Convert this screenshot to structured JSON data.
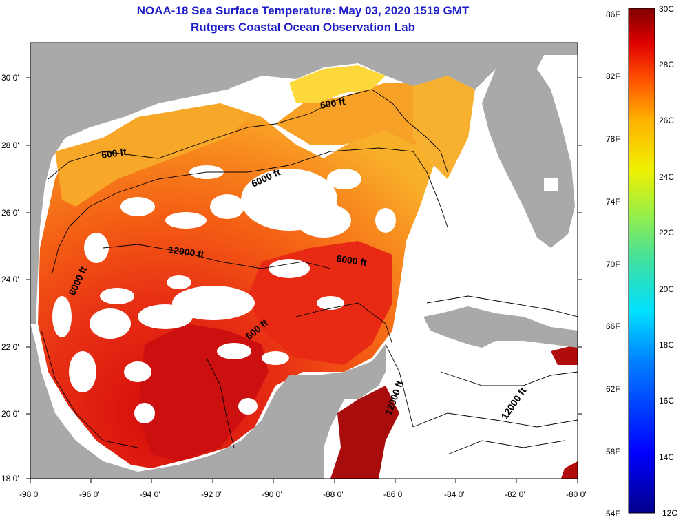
{
  "title": {
    "line1": "NOAA-18 Sea Surface Temperature:  May 03, 2020 1519 GMT",
    "line2": "Rutgers Coastal Ocean Observation Lab"
  },
  "axes": {
    "lon_labels": [
      "-98 0'",
      "-96 0'",
      "-94 0'",
      "-92 0'",
      "-90 0'",
      "-88 0'",
      "-86 0'",
      "-84 0'",
      "-82 0'",
      "-80 0'"
    ],
    "lat_labels": [
      "30 0'",
      "28 0'",
      "26 0'",
      "24 0'",
      "22 0'",
      "20 0'",
      "18 0'"
    ],
    "lon_range": [
      -98,
      -80
    ],
    "lat_range": [
      18,
      31
    ]
  },
  "contours": {
    "labels": [
      "600 ft",
      "600 ft",
      "6000 ft",
      "12000 ft",
      "6000 ft",
      "6000 ft",
      "600 ft",
      "12000 ft",
      "12000 ft"
    ]
  },
  "colorbar": {
    "fahrenheit": [
      "86F",
      "82F",
      "78F",
      "74F",
      "70F",
      "66F",
      "62F",
      "58F",
      "54F"
    ],
    "celsius": [
      "30C",
      "28C",
      "26C",
      "24C",
      "22C",
      "20C",
      "18C",
      "16C",
      "14C",
      "12C"
    ],
    "range_f": [
      54,
      86
    ],
    "range_c": [
      12,
      30
    ]
  },
  "colors": {
    "land": "#a9a9a9",
    "cloud": "#ffffff",
    "title": "#1e1ec8"
  }
}
